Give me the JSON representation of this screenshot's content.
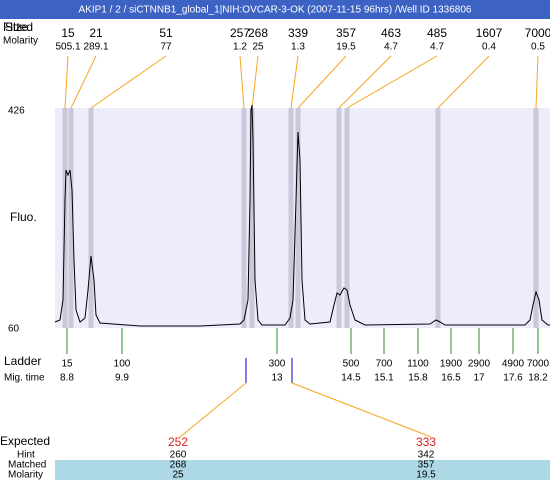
{
  "title": "AKIP1 / 2 / siCTNNB1_global_1|NIH:OVCAR-3-OK (2007-11-15 96hrs) /Well ID 1336806",
  "peak_table": {
    "row_labels": [
      "Fitted",
      "Size",
      "Molarity"
    ],
    "peaks": [
      {
        "size": 15,
        "molarity": 505.1
      },
      {
        "size": 21,
        "molarity": 289.1
      },
      {
        "size": 51,
        "molarity": 77
      },
      {
        "size": 257,
        "molarity": 1.2
      },
      {
        "size": 268,
        "molarity": 25
      },
      {
        "size": 339,
        "molarity": 1.3
      },
      {
        "size": 357,
        "molarity": 19.5
      },
      {
        "size": 463,
        "molarity": 4.7
      },
      {
        "size": 485,
        "molarity": 4.7
      },
      {
        "size": 1607,
        "molarity": 0.4
      },
      {
        "size": 7000,
        "molarity": 0.5
      }
    ]
  },
  "y_axis": {
    "label": "Fluo.",
    "max": 426,
    "min": 60
  },
  "ladder": {
    "label": "Ladder",
    "time_label": "Mig. time",
    "sizes": [
      15,
      100,
      300,
      500,
      700,
      1100,
      1900,
      2900,
      4900,
      7000
    ],
    "times": [
      8.8,
      9.9,
      13,
      14.5,
      15.1,
      15.8,
      16.5,
      17,
      17.6,
      18.2
    ]
  },
  "expected": {
    "label": "Expected",
    "hint_label": "Hint",
    "matched_label": "Matched",
    "molarity_label": "Molarity",
    "items": [
      {
        "expected": 252,
        "hint": 260,
        "matched": 268,
        "molarity": 25
      },
      {
        "expected": 333,
        "hint": 342,
        "matched": 357,
        "molarity": 19.5
      }
    ]
  }
}
